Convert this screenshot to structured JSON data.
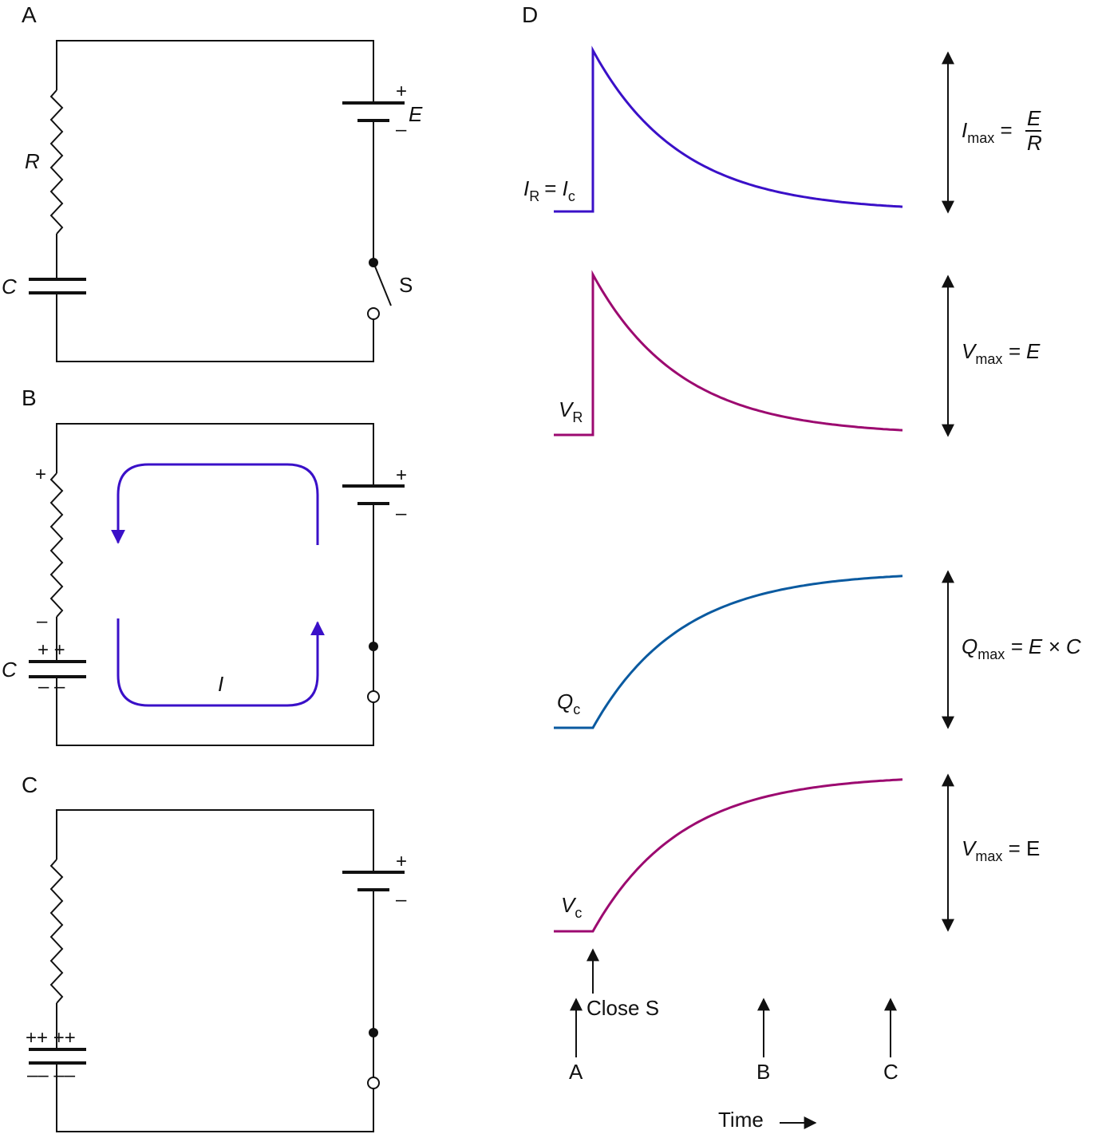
{
  "panels": {
    "a": "A",
    "b": "B",
    "c": "C",
    "d": "D"
  },
  "circuit": {
    "resistor": "R",
    "capacitor": "C",
    "emf": "E",
    "switch": "S",
    "plus": "+",
    "minus": "–",
    "plus_pair": "+ +",
    "minus_pair": "– –",
    "plus_quad": "++ ++",
    "minus_quad": "–– ––",
    "current": "I"
  },
  "curves": {
    "current": {
      "label_main": "I",
      "label_sub": "R",
      "label_eq": "= ",
      "label_main2": "I",
      "label_sub2": "c",
      "max_main": "I",
      "max_sub": "max",
      "max_eq": " = ",
      "max_num": "E",
      "max_den": "R",
      "color": "#3a10c8"
    },
    "v_resistor": {
      "label_main": "V",
      "label_sub": "R",
      "max_main": "V",
      "max_sub": "max",
      "max_rest": " = E",
      "color": "#9c0a70"
    },
    "charge": {
      "label_main": "Q",
      "label_sub": "c",
      "max_main": "Q",
      "max_sub": "max",
      "max_rest": " = E × C",
      "color": "#0a5aa0"
    },
    "v_capacitor": {
      "label_main": "V",
      "label_sub": "c",
      "max_main": "V",
      "max_sub": "max",
      "max_rest": " = E",
      "color": "#9c0a70"
    }
  },
  "time_axis": {
    "close_switch": "Close S",
    "markers": [
      "A",
      "B",
      "C"
    ],
    "label": "Time"
  },
  "colors": {
    "loop": "#3a10c8",
    "ink": "#111111"
  }
}
